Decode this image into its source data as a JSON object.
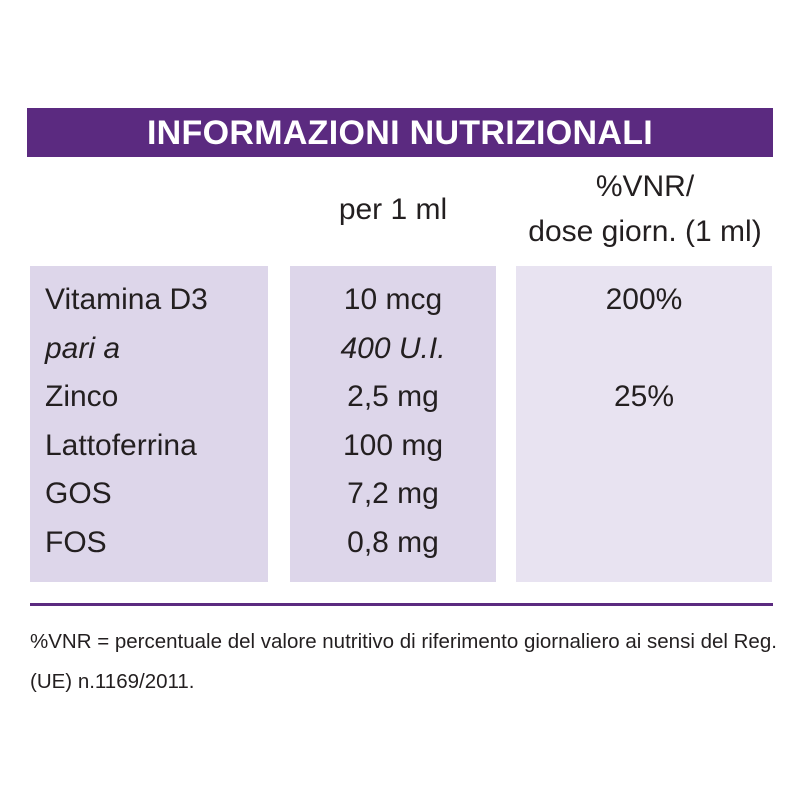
{
  "header": {
    "title": "INFORMAZIONI NUTRIZIONALI"
  },
  "table": {
    "headers": {
      "amount": "per 1 ml",
      "vnr": [
        "%VNR/",
        "dose giorn. (1 ml)"
      ]
    },
    "rows": [
      {
        "name": "Vitamina D3",
        "amount": "10 mcg",
        "vnr": "200%"
      },
      {
        "name": "pari a",
        "amount": "400 U.I.",
        "italic": true
      },
      {
        "name": "Zinco",
        "amount": "2,5 mg",
        "vnr": "25%"
      },
      {
        "name": "Lattoferrina",
        "amount": "100 mg"
      },
      {
        "name": "GOS",
        "amount": "7,2 mg"
      },
      {
        "name": "FOS",
        "amount": "0,8 mg"
      }
    ]
  },
  "footnote": [
    "%VNR = percentuale del valore nutritivo di riferimento giornaliero ai sensi del Reg.",
    "(UE) n.1169/2011."
  ]
}
